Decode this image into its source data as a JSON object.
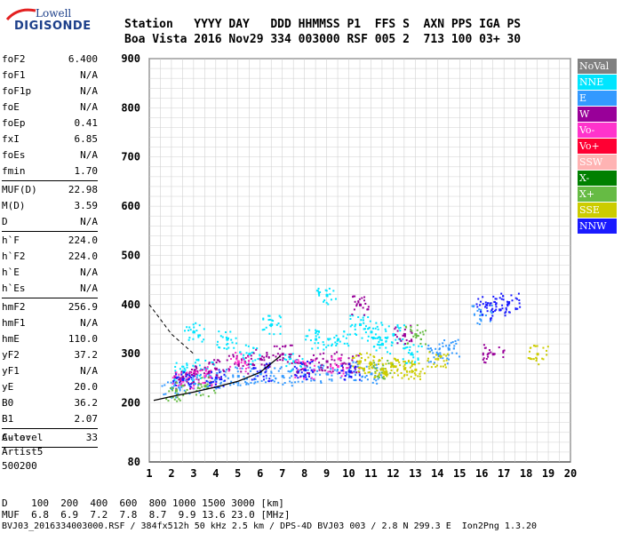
{
  "logo": {
    "brand": "Lowell",
    "product": "DIGISONDE"
  },
  "header": {
    "line1": "Station   YYYY DAY   DDD HHMMSS P1  FFS S  AXN PPS IGA PS",
    "line2": "Boa Vista 2016 Nov29 334 003000 RSF 005 2  713 100 03+ 30"
  },
  "params": [
    {
      "name": "foF2",
      "value": "6.400"
    },
    {
      "name": "foF1",
      "value": "N/A"
    },
    {
      "name": "foF1p",
      "value": "N/A"
    },
    {
      "name": "foE",
      "value": "N/A"
    },
    {
      "name": "foEp",
      "value": "0.41"
    },
    {
      "name": "fxI",
      "value": "6.85"
    },
    {
      "name": "foEs",
      "value": "N/A"
    },
    {
      "name": "fmin",
      "value": "1.70"
    },
    {
      "sep": true
    },
    {
      "name": "MUF(D)",
      "value": "22.98"
    },
    {
      "name": "M(D)",
      "value": "3.59"
    },
    {
      "name": "D",
      "value": "N/A"
    },
    {
      "sep": true
    },
    {
      "name": "h`F",
      "value": "224.0"
    },
    {
      "name": "h`F2",
      "value": "224.0"
    },
    {
      "name": "h`E",
      "value": "N/A"
    },
    {
      "name": "h`Es",
      "value": "N/A"
    },
    {
      "sep": true
    },
    {
      "name": "hmF2",
      "value": "256.9"
    },
    {
      "name": "hmF1",
      "value": "N/A"
    },
    {
      "name": "hmE",
      "value": "110.0"
    },
    {
      "name": "yF2",
      "value": "37.2"
    },
    {
      "name": "yF1",
      "value": "N/A"
    },
    {
      "name": "yE",
      "value": "20.0"
    },
    {
      "name": "B0",
      "value": "36.2"
    },
    {
      "name": "B1",
      "value": "2.07"
    },
    {
      "sep": true
    },
    {
      "name": "C-level",
      "value": "33"
    },
    {
      "sep": true
    }
  ],
  "auto": {
    "label": "Auto:",
    "line2": "Artist5",
    "line3": "500200"
  },
  "legend": [
    {
      "label": "NoVal",
      "color": "#808080"
    },
    {
      "label": "NNE",
      "color": "#00e5ff"
    },
    {
      "label": "E",
      "color": "#3399ff"
    },
    {
      "label": "W",
      "color": "#990099"
    },
    {
      "label": "Vo-",
      "color": "#ff33cc"
    },
    {
      "label": "Vo+",
      "color": "#ff0033"
    },
    {
      "label": "SSW",
      "color": "#ffb3b3"
    },
    {
      "label": "X-",
      "color": "#008000"
    },
    {
      "label": "X+",
      "color": "#66bb44"
    },
    {
      "label": "SSE",
      "color": "#cccc00"
    },
    {
      "label": "NNW",
      "color": "#1a1aff"
    }
  ],
  "footer": {
    "line1": "D    100  200  400  600  800 1000 1500 3000 [km]",
    "line2": "MUF  6.8  6.9  7.2  7.8  8.7  9.9 13.6 23.0 [MHz]",
    "line3": "BVJ03_2016334003000.RSF / 384fx512h 50 kHz 2.5 km / DPS-4D BVJ03 003 / 2.8 N 299.3 E  Ion2Png 1.3.20"
  },
  "chart_data": {
    "type": "scatter",
    "title": "",
    "xlabel": "",
    "ylabel": "",
    "xlim": [
      1,
      20
    ],
    "ylim": [
      80,
      900
    ],
    "x_ticks": [
      1,
      2,
      3,
      4,
      5,
      6,
      7,
      8,
      9,
      10,
      11,
      12,
      13,
      14,
      15,
      16,
      17,
      18,
      19,
      20
    ],
    "y_ticks": [
      80,
      200,
      300,
      400,
      500,
      600,
      700,
      800,
      900
    ],
    "grid": true,
    "legend_position": "right",
    "series": [
      {
        "name": "NNE",
        "color": "#00e5ff",
        "points": [
          [
            2.5,
            265
          ],
          [
            3.0,
            345
          ],
          [
            3.5,
            270
          ],
          [
            4.5,
            330
          ],
          [
            5.5,
            300
          ],
          [
            6.5,
            360
          ],
          [
            7.5,
            285
          ],
          [
            8.5,
            330
          ],
          [
            9.0,
            420
          ],
          [
            9.5,
            330
          ],
          [
            10.5,
            360
          ],
          [
            11.0,
            345
          ],
          [
            11.5,
            320
          ],
          [
            12.0,
            340
          ],
          [
            12.8,
            300
          ]
        ]
      },
      {
        "name": "E",
        "color": "#3399ff",
        "points": [
          [
            2.0,
            230
          ],
          [
            3.0,
            240
          ],
          [
            4.0,
            250
          ],
          [
            5.0,
            255
          ],
          [
            6.0,
            260
          ],
          [
            7.0,
            255
          ],
          [
            8.0,
            258
          ],
          [
            9.0,
            260
          ],
          [
            10.0,
            265
          ],
          [
            11.0,
            260
          ],
          [
            14.0,
            300
          ],
          [
            14.5,
            310
          ],
          [
            16.0,
            380
          ]
        ]
      },
      {
        "name": "W",
        "color": "#990099",
        "points": [
          [
            2.5,
            250
          ],
          [
            3.0,
            260
          ],
          [
            4.0,
            270
          ],
          [
            5.0,
            280
          ],
          [
            6.0,
            290
          ],
          [
            7.0,
            300
          ],
          [
            8.0,
            280
          ],
          [
            9.0,
            285
          ],
          [
            10.0,
            280
          ],
          [
            10.5,
            400
          ],
          [
            12.5,
            340
          ],
          [
            16.5,
            300
          ]
        ]
      },
      {
        "name": "Vo-",
        "color": "#ff33cc",
        "points": [
          [
            2.5,
            245
          ],
          [
            3.5,
            255
          ],
          [
            5.0,
            285
          ],
          [
            8.0,
            270
          ],
          [
            9.5,
            275
          ]
        ]
      },
      {
        "name": "X+",
        "color": "#66bb44",
        "points": [
          [
            2.2,
            225
          ],
          [
            3.5,
            235
          ],
          [
            11.5,
            270
          ],
          [
            13.0,
            340
          ]
        ]
      },
      {
        "name": "SSE",
        "color": "#cccc00",
        "points": [
          [
            10.5,
            285
          ],
          [
            11.0,
            280
          ],
          [
            11.5,
            270
          ],
          [
            12.0,
            275
          ],
          [
            12.5,
            270
          ],
          [
            13.0,
            268
          ],
          [
            14.0,
            290
          ],
          [
            18.5,
            300
          ]
        ]
      },
      {
        "name": "NNW",
        "color": "#1a1aff",
        "points": [
          [
            2.5,
            248
          ],
          [
            4.0,
            252
          ],
          [
            6.0,
            265
          ],
          [
            8.0,
            268
          ],
          [
            10.0,
            265
          ],
          [
            16.2,
            400
          ],
          [
            16.8,
            390
          ],
          [
            17.2,
            405
          ]
        ]
      }
    ],
    "trace_lower": [
      [
        1.2,
        205
      ],
      [
        2,
        213
      ],
      [
        3,
        222
      ],
      [
        4,
        232
      ],
      [
        5,
        244
      ],
      [
        6,
        262
      ],
      [
        6.9,
        295
      ]
    ],
    "trace_upper": [
      [
        1,
        400
      ],
      [
        1.5,
        370
      ],
      [
        2,
        340
      ],
      [
        2.5,
        320
      ],
      [
        3,
        300
      ]
    ]
  }
}
